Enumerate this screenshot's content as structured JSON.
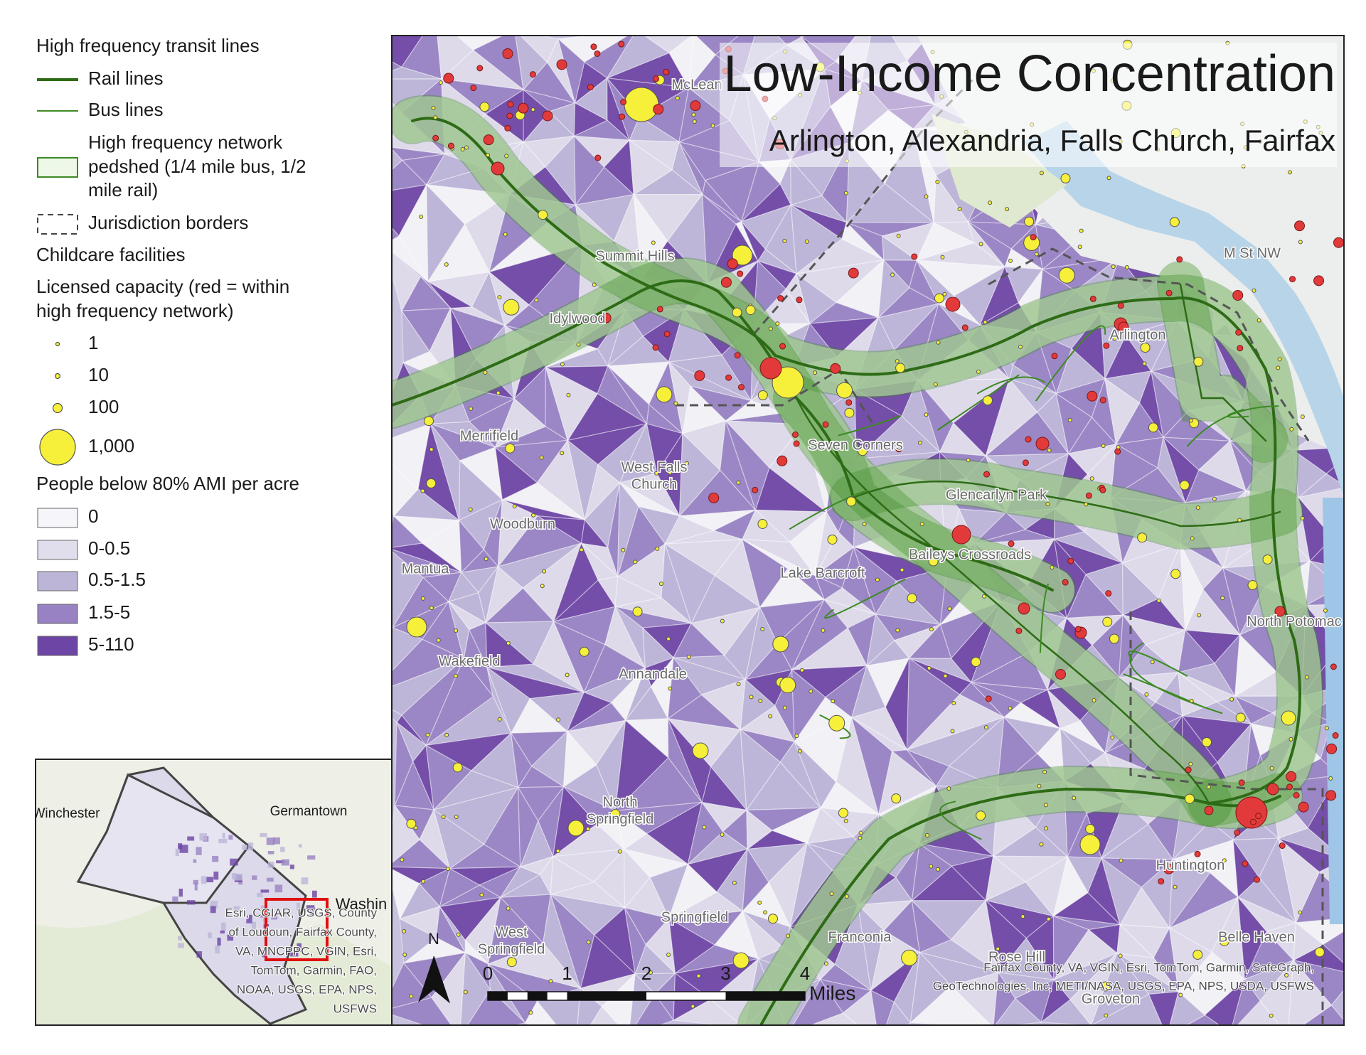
{
  "title": "Low-Income Concentration",
  "subtitle": "Arlington, Alexandria, Falls Church, Fairfax",
  "legend": {
    "transit_heading": "High frequency transit lines",
    "rail": "Rail lines",
    "bus": "Bus lines",
    "pedshed": [
      "High frequency network",
      "pedshed (1/4 mile bus, 1/2",
      "mile rail)"
    ],
    "borders": "Jurisdiction borders",
    "childcare_heading": "Childcare facilities",
    "capacity_heading": [
      "Licensed capacity (red = within",
      "high frequency network)"
    ],
    "capacity": [
      "1",
      "10",
      "100",
      "1,000"
    ],
    "ami_heading": "People below 80% AMI per acre",
    "ami": [
      {
        "label": "0",
        "color": "#f6f5f9"
      },
      {
        "label": "0-0.5",
        "color": "#e0ddec"
      },
      {
        "label": "0.5-1.5",
        "color": "#bdb5d8"
      },
      {
        "label": "1.5-5",
        "color": "#9882c3"
      },
      {
        "label": "5-110",
        "color": "#6d45a4"
      }
    ]
  },
  "places": [
    "McLean",
    "Summit Hills",
    "Idylwood",
    "Merrifield",
    [
      "West Falls",
      "Church"
    ],
    "Woodburn",
    "Mantua",
    "Lake Barcroft",
    "Wakefield",
    "Annandale",
    [
      "North",
      "Springfield"
    ],
    "Springfield",
    [
      "West",
      "Springfield"
    ],
    "Franconia",
    "Huntington",
    "Belle Haven",
    "Arlington",
    "Seven Corners",
    "Glencarlyn Park",
    "Baileys Crossroads",
    "Rose Hill",
    "Groveton",
    "M St NW",
    "North Potomac"
  ],
  "scale_bar": {
    "ticks": [
      "0",
      "1",
      "2",
      "3",
      "4"
    ],
    "unit": "Miles"
  },
  "north": "N",
  "credits": [
    "Fairfax County, VA, VGIN, Esri, TomTom, Garmin, SafeGraph,",
    "GeoTechnologies, Inc, METI/NASA, USGS, EPA, NPS, USDA, USFWS"
  ],
  "inset": {
    "places": [
      "Winchester",
      "Germantown",
      "Washin"
    ],
    "credits": [
      "Esri, CGIAR, USGS, County",
      "of Loudoun, Fairfax County,",
      "VA, MNCPPC, VGIN, Esri,",
      "TomTom, Garmin, FAO,",
      "NOAA, USGS, EPA, NPS,",
      "USFWS"
    ]
  }
}
